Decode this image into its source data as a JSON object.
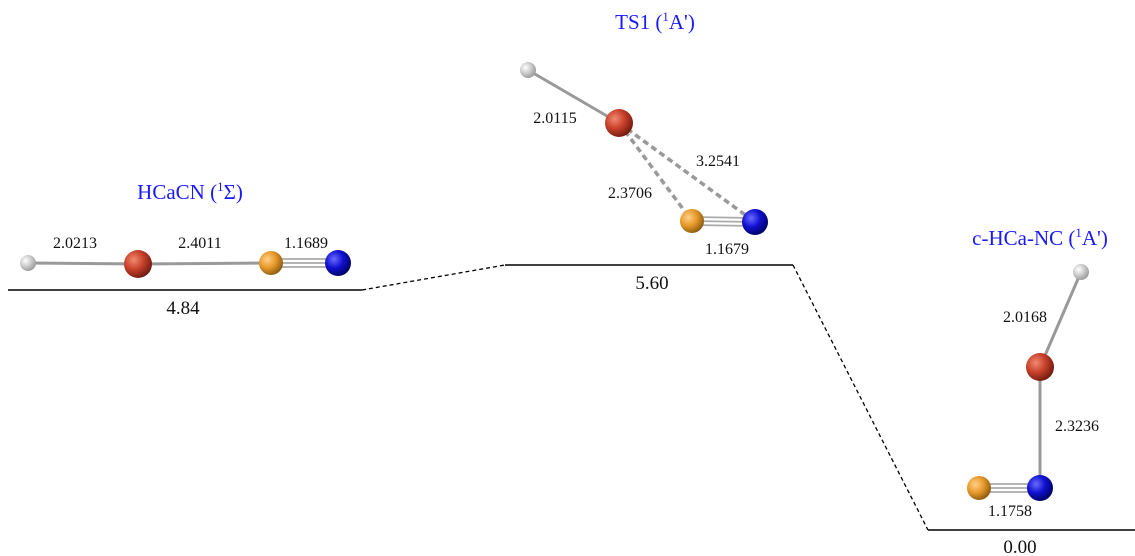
{
  "species": [
    {
      "title_prefix": "HCaCN (",
      "title_sup": "1",
      "title_suffix": "Σ)",
      "energy": "4.84",
      "bonds": [
        "2.0213",
        "2.4011",
        "1.1689"
      ]
    },
    {
      "title_prefix": "TS1 (",
      "title_sup": "1",
      "title_suffix": "A')",
      "energy": "5.60",
      "bonds": [
        "2.0115",
        "3.2541",
        "2.3706",
        "1.1679"
      ]
    },
    {
      "title_prefix": "c-HCa-NC (",
      "title_sup": "1",
      "title_suffix": "A')",
      "energy": "0.00",
      "bonds": [
        "2.0168",
        "2.3236",
        "1.1758"
      ]
    }
  ]
}
